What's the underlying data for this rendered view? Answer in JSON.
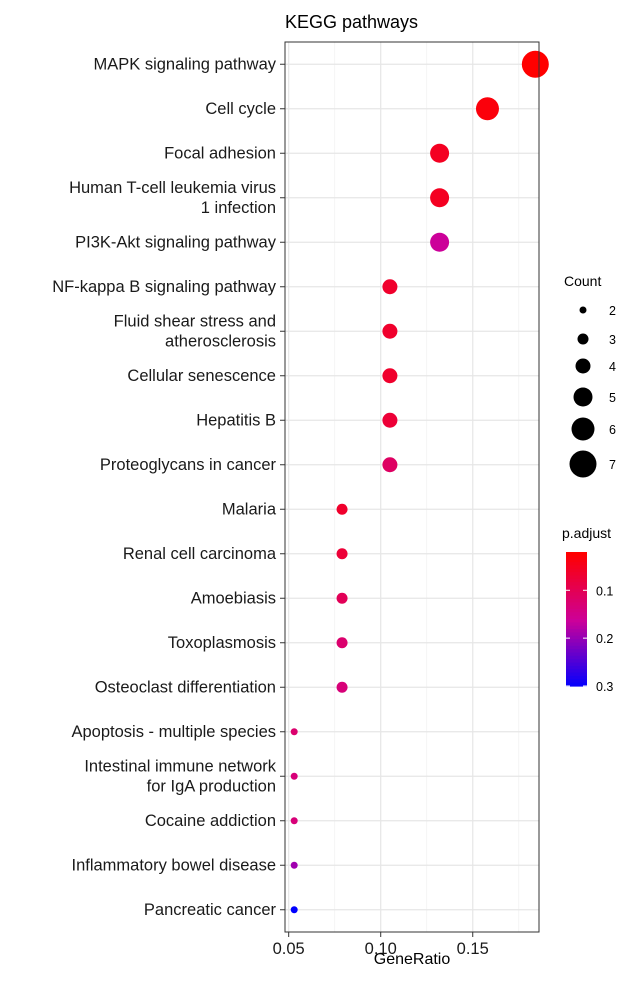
{
  "chart_data": {
    "type": "scatter",
    "title": "KEGG pathways",
    "xlabel": "GeneRatio",
    "ylabel": "",
    "xlim": [
      0.048,
      0.186
    ],
    "x_ticks": [
      "0.05",
      "0.10",
      "0.15"
    ],
    "x_tick_values": [
      0.05,
      0.1,
      0.15
    ],
    "grid": true,
    "categories": [
      "MAPK signaling pathway",
      "Cell cycle",
      "Focal adhesion",
      "Human T-cell leukemia virus 1 infection",
      "PI3K-Akt signaling pathway",
      "NF-kappa B signaling pathway",
      "Fluid shear stress and atherosclerosis",
      "Cellular senescence",
      "Hepatitis B",
      "Proteoglycans in cancer",
      "Malaria",
      "Renal cell carcinoma",
      "Amoebiasis",
      "Toxoplasmosis",
      "Osteoclast differentiation",
      "Apoptosis - multiple species",
      "Intestinal immune network for IgA production",
      "Cocaine addiction",
      "Inflammatory bowel disease",
      "Pancreatic cancer"
    ],
    "category_lines": [
      [
        "MAPK signaling pathway"
      ],
      [
        "Cell cycle"
      ],
      [
        "Focal adhesion"
      ],
      [
        "Human T-cell leukemia virus",
        "1 infection"
      ],
      [
        "PI3K-Akt signaling pathway"
      ],
      [
        "NF-kappa B signaling pathway"
      ],
      [
        "Fluid shear stress and",
        "atherosclerosis"
      ],
      [
        "Cellular senescence"
      ],
      [
        "Hepatitis B"
      ],
      [
        "Proteoglycans in cancer"
      ],
      [
        "Malaria"
      ],
      [
        "Renal cell carcinoma"
      ],
      [
        "Amoebiasis"
      ],
      [
        "Toxoplasmosis"
      ],
      [
        "Osteoclast differentiation"
      ],
      [
        "Apoptosis - multiple species"
      ],
      [
        "Intestinal immune network",
        "for IgA production"
      ],
      [
        "Cocaine addiction"
      ],
      [
        "Inflammatory bowel disease"
      ],
      [
        "Pancreatic cancer"
      ]
    ],
    "gene_ratio": [
      0.184,
      0.158,
      0.132,
      0.132,
      0.132,
      0.105,
      0.105,
      0.105,
      0.105,
      0.105,
      0.079,
      0.079,
      0.079,
      0.079,
      0.079,
      0.053,
      0.053,
      0.053,
      0.053,
      0.053
    ],
    "count": [
      7,
      6,
      5,
      5,
      5,
      4,
      4,
      4,
      4,
      4,
      3,
      3,
      3,
      3,
      3,
      2,
      2,
      2,
      2,
      2
    ],
    "p_adjust": [
      0.02,
      0.03,
      0.05,
      0.05,
      0.16,
      0.06,
      0.06,
      0.06,
      0.07,
      0.11,
      0.06,
      0.07,
      0.1,
      0.12,
      0.13,
      0.12,
      0.13,
      0.13,
      0.19,
      0.3
    ],
    "legend_size": {
      "title": "Count",
      "labels": [
        "2",
        "3",
        "4",
        "5",
        "6",
        "7"
      ],
      "values": [
        2,
        3,
        4,
        5,
        6,
        7
      ]
    },
    "legend_color": {
      "title": "p.adjust",
      "labels": [
        "0.1",
        "0.2",
        "0.3"
      ],
      "values": [
        0.1,
        0.2,
        0.3
      ],
      "min": 0.02,
      "max": 0.3,
      "low_color": "#ff0000",
      "mid_color": "#cc0099",
      "high_color": "#0000ff"
    },
    "legend_placement": "right"
  }
}
